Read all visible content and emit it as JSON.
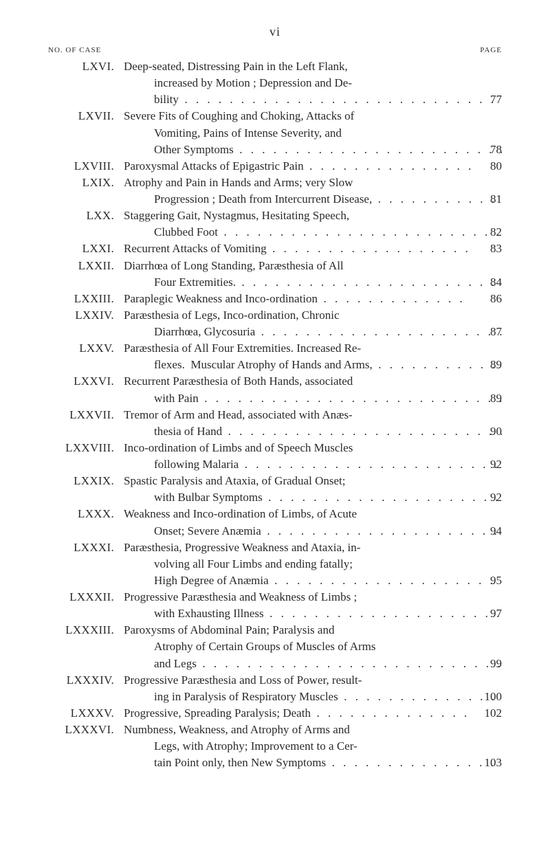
{
  "page_number_roman": "vi",
  "header_left": "NO. OF CASE",
  "header_right": "PAGE",
  "leader_glyphs": ". . . . . . . . . . . . . . . . . . . . . . . . . . . . . . . . . . . . . . . . . . . . . . . . . .",
  "entries": [
    {
      "case": "LXVI.",
      "page": "77",
      "lines": [
        "Deep-seated, Distressing Pain in the Left Flank,",
        "increased by Motion ; Depression and De-",
        "bility"
      ]
    },
    {
      "case": "LXVII.",
      "page": "78",
      "lines": [
        "Severe Fits of Coughing and Choking, Attacks of",
        "Vomiting, Pains of Intense Severity, and",
        "Other Symptoms"
      ]
    },
    {
      "case": "LXVIII.",
      "page": "80",
      "lines": [
        "Paroxysmal Attacks of Epigastric Pain"
      ]
    },
    {
      "case": "LXIX.",
      "page": "81",
      "lines": [
        "Atrophy and Pain in Hands and Arms; very Slow",
        "Progression ; Death from Intercurrent Disease,"
      ]
    },
    {
      "case": "LXX.",
      "page": "82",
      "lines": [
        "Staggering Gait, Nystagmus, Hesitating Speech,",
        "Clubbed Foot"
      ]
    },
    {
      "case": "LXXI.",
      "page": "83",
      "lines": [
        "Recurrent Attacks of Vomiting"
      ]
    },
    {
      "case": "LXXII.",
      "page": "84",
      "lines": [
        "Diarrhœa of Long Standing, Paræsthesia of All",
        "Four Extremities."
      ]
    },
    {
      "case": "LXXIII.",
      "page": "86",
      "lines": [
        "Paraplegic Weakness and Inco-ordination"
      ]
    },
    {
      "case": "LXXIV.",
      "page": "87",
      "lines": [
        "Paræsthesia of Legs, Inco-ordination, Chronic",
        "Diarrhœa, Glycosuria"
      ]
    },
    {
      "case": "LXXV.",
      "page": "89",
      "lines": [
        "Paræsthesia of All Four Extremities. Increased Re-",
        "flexes.  Muscular Atrophy of Hands and Arms,"
      ]
    },
    {
      "case": "LXXVI.",
      "page": "89",
      "lines": [
        "Recurrent Paræsthesia of Both Hands, associated",
        "with Pain"
      ]
    },
    {
      "case": "LXXVII.",
      "page": "90",
      "lines": [
        "Tremor of Arm and Head, associated with Anæs-",
        "thesia of Hand"
      ]
    },
    {
      "case": "LXXVIII.",
      "page": "92",
      "lines": [
        "Inco-ordination of Limbs and of Speech Muscles",
        "following Malaria"
      ]
    },
    {
      "case": "LXXIX.",
      "page": "92",
      "lines": [
        "Spastic Paralysis and Ataxia, of Gradual Onset;",
        "with Bulbar Symptoms"
      ]
    },
    {
      "case": "LXXX.",
      "page": "94",
      "lines": [
        "Weakness and Inco-ordination of Limbs, of Acute",
        "Onset; Severe Anæmia"
      ]
    },
    {
      "case": "LXXXI.",
      "page": "95",
      "lines": [
        "Paræsthesia, Progressive Weakness and Ataxia, in-",
        "volving all Four Limbs and ending fatally;",
        "High Degree of Anæmia"
      ]
    },
    {
      "case": "LXXXII.",
      "page": "97",
      "lines": [
        "Progressive Paræsthesia and Weakness of Limbs ;",
        "with Exhausting Illness"
      ]
    },
    {
      "case": "LXXXIII.",
      "page": "99",
      "lines": [
        "Paroxysms of Abdominal Pain; Paralysis and",
        "Atrophy of Certain Groups of Muscles of Arms",
        "and Legs"
      ]
    },
    {
      "case": "LXXXIV.",
      "page": "100",
      "lines": [
        "Progressive Paræsthesia and Loss of Power, result-",
        "ing in Paralysis of Respiratory Muscles"
      ]
    },
    {
      "case": "LXXXV.",
      "page": "102",
      "lines": [
        "Progressive, Spreading Paralysis; Death"
      ]
    },
    {
      "case": "LXXXVI.",
      "page": "103",
      "lines": [
        "Numbness, Weakness, and Atrophy of Arms and",
        "Legs, with Atrophy; Improvement to a Cer-",
        "tain Point only, then New Symptoms"
      ]
    }
  ]
}
